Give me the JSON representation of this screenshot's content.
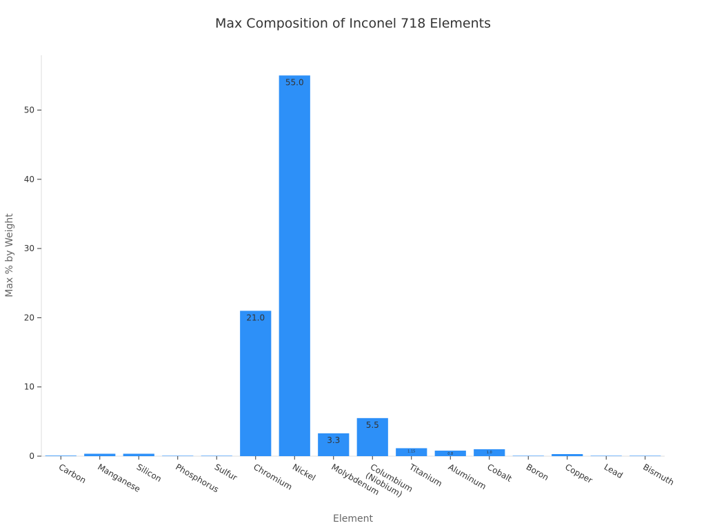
{
  "chart_data": {
    "type": "bar",
    "title": "Max Composition of Inconel 718 Elements",
    "xlabel": "Element",
    "ylabel": "Max % by Weight",
    "ylim": [
      0,
      58
    ],
    "yticks": [
      0,
      10,
      20,
      30,
      40,
      50
    ],
    "grid": false,
    "categories": [
      "Carbon",
      "Manganese",
      "Silicon",
      "Phosphorus",
      "Sulfur",
      "Chromium",
      "Nickel",
      "Molybdenum",
      "Columbium\n(Niobium)",
      "Titanium",
      "Aluminum",
      "Cobalt",
      "Boron",
      "Copper",
      "Lead",
      "Bismuth"
    ],
    "values": [
      0.08,
      0.35,
      0.35,
      0.015,
      0.015,
      21.0,
      55.0,
      3.3,
      5.5,
      1.15,
      0.8,
      1.0,
      0.006,
      0.3,
      0.0005,
      3e-05
    ],
    "value_labels": [
      "",
      "",
      "",
      "",
      "",
      "21.0",
      "55.0",
      "3.3",
      "5.5",
      "1.15",
      "0.8",
      "1.0",
      "",
      "",
      "",
      ""
    ],
    "bar_color": "#2d90f8"
  }
}
